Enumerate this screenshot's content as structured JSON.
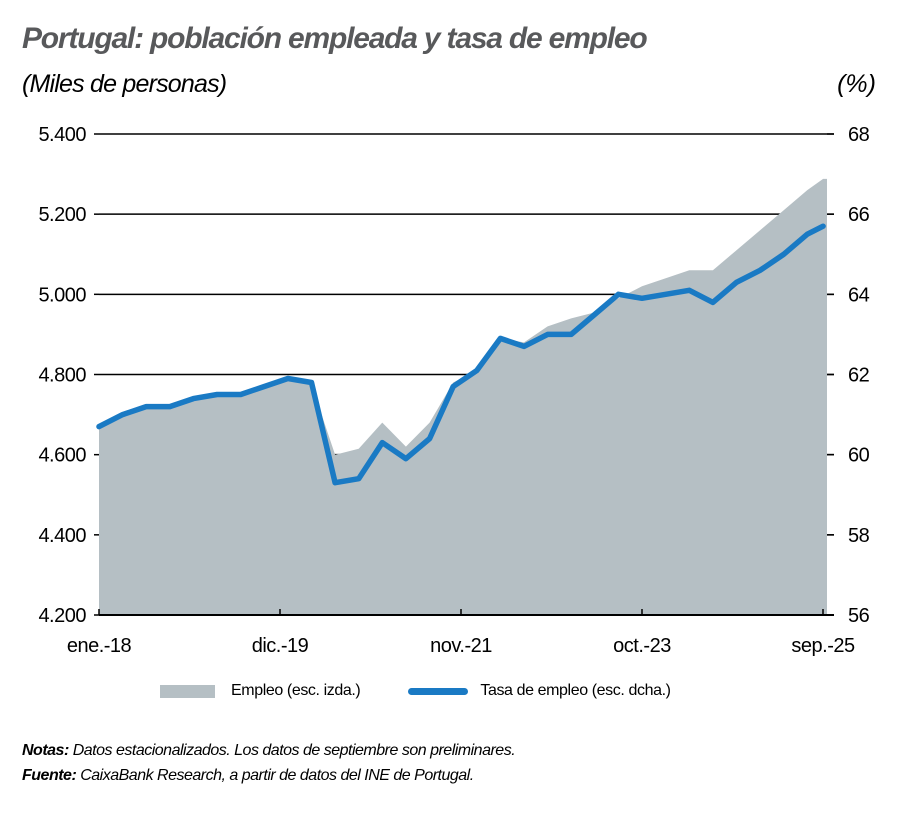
{
  "header": {
    "title": "Portugal: población empleada y tasa de empleo",
    "unit_left": "(Miles de personas)",
    "unit_right": "(%)"
  },
  "legend": {
    "area_label": "Empleo (esc. izda.)",
    "line_label": "Tasa de empleo (esc. dcha.)"
  },
  "notes": {
    "notes_label": "Notas:",
    "notes_text": " Datos estacionalizados. Los datos de septiembre son preliminares.",
    "source_label": "Fuente:",
    "source_text": " CaixaBank Research, a partir de datos del INE de Portugal."
  },
  "colors": {
    "area": "#b5bfc4",
    "line": "#1a7ac4",
    "title": "#58595b",
    "axis": "#000000"
  },
  "chart_data": {
    "type": "area+line",
    "title": "Portugal: población empleada y tasa de empleo",
    "xlabel": "",
    "ylabel_left": "Miles de personas",
    "ylabel_right": "%",
    "ylim_left": [
      4200,
      5400
    ],
    "ylim_right": [
      56,
      68
    ],
    "yticks_left": [
      "4.200",
      "4.400",
      "4.600",
      "4.800",
      "5.000",
      "5.200",
      "5.400"
    ],
    "yticks_right": [
      "56",
      "58",
      "60",
      "62",
      "64",
      "66",
      "68"
    ],
    "xtick_labels": [
      "ene.-18",
      "dic.-19",
      "nov.-21",
      "oct.-23",
      "sep.-25"
    ],
    "xtick_month_index": [
      0,
      23,
      46,
      69,
      92
    ],
    "grid": "horizontal",
    "legend_position": "bottom",
    "x": [
      "ene.-18",
      "abr.-18",
      "jul.-18",
      "oct.-18",
      "ene.-19",
      "abr.-19",
      "jul.-19",
      "oct.-19",
      "ene.-20",
      "abr.-20",
      "jul.-20",
      "oct.-20",
      "ene.-21",
      "abr.-21",
      "jul.-21",
      "oct.-21",
      "ene.-22",
      "abr.-22",
      "jul.-22",
      "oct.-22",
      "ene.-23",
      "abr.-23",
      "jul.-23",
      "oct.-23",
      "ene.-24",
      "abr.-24",
      "jul.-24",
      "oct.-24",
      "ene.-25",
      "abr.-25",
      "jul.-25",
      "sep.-25"
    ],
    "month_index": [
      0,
      3,
      6,
      9,
      12,
      15,
      18,
      21,
      24,
      27,
      30,
      33,
      36,
      39,
      42,
      45,
      48,
      51,
      54,
      57,
      60,
      63,
      66,
      69,
      72,
      75,
      78,
      81,
      84,
      87,
      90,
      92
    ],
    "series": [
      {
        "name": "Empleo (esc. izda.)",
        "axis": "left",
        "type": "area",
        "values": [
          4670,
          4700,
          4720,
          4715,
          4735,
          4750,
          4750,
          4770,
          4785,
          4775,
          4600,
          4615,
          4680,
          4620,
          4680,
          4780,
          4810,
          4890,
          4880,
          4920,
          4940,
          4955,
          4990,
          5020,
          5040,
          5060,
          5060,
          5110,
          5160,
          5210,
          5260,
          5288
        ]
      },
      {
        "name": "Tasa de empleo (esc. dcha.)",
        "axis": "right",
        "type": "line",
        "values": [
          60.7,
          61.0,
          61.2,
          61.2,
          61.4,
          61.5,
          61.5,
          61.7,
          61.9,
          61.8,
          59.3,
          59.4,
          60.3,
          59.9,
          60.4,
          61.7,
          62.1,
          62.9,
          62.7,
          63.0,
          63.0,
          63.5,
          64.0,
          63.9,
          64.0,
          64.1,
          63.8,
          64.3,
          64.6,
          65.0,
          65.5,
          65.7
        ]
      }
    ]
  }
}
